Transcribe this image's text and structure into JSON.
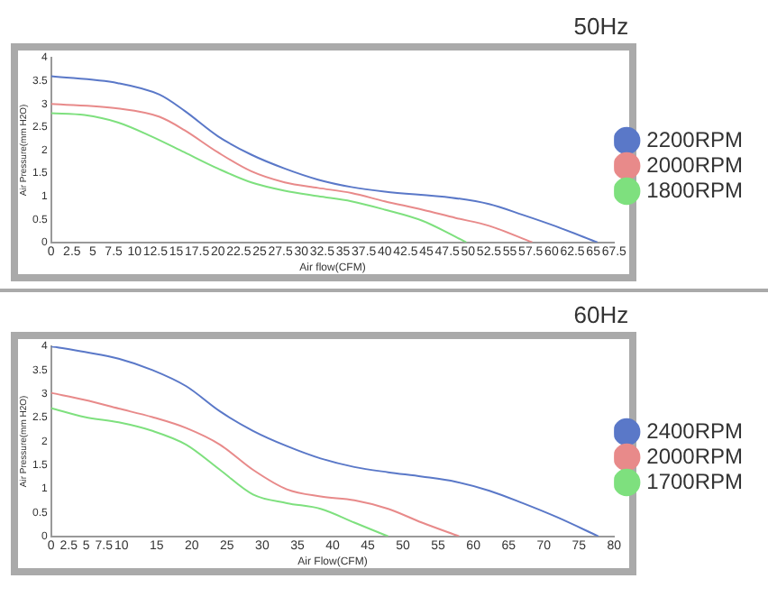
{
  "chart_data": [
    {
      "type": "line",
      "title": "50Hz",
      "xlabel": "Air flow(CFM)",
      "ylabel": "Air Pressure(mm H2O)",
      "xlim": [
        0,
        67.5
      ],
      "xticks": [
        0,
        2.5,
        5,
        7.5,
        10,
        12.5,
        15,
        17.5,
        20,
        22.5,
        25,
        27.5,
        30,
        32.5,
        35,
        37.5,
        40,
        42.5,
        45,
        47.5,
        50,
        52.5,
        55,
        57.5,
        60,
        62.5,
        65,
        67.5
      ],
      "ylim": [
        0,
        4
      ],
      "yticks": [
        0,
        0.5,
        1,
        1.5,
        2,
        2.5,
        3,
        3.5,
        4
      ],
      "grid": false,
      "legend": "right",
      "marker": "none",
      "line_style": "solid",
      "series": [
        {
          "name": "2200RPM",
          "color": "#5a78c8",
          "x": [
            0,
            8,
            13,
            16,
            20,
            24,
            28,
            32,
            36,
            40,
            48,
            52.5,
            56.5,
            60.5,
            65.5
          ],
          "values": [
            3.6,
            3.45,
            3.2,
            2.85,
            2.3,
            1.9,
            1.6,
            1.36,
            1.2,
            1.1,
            0.97,
            0.83,
            0.6,
            0.35,
            0
          ]
        },
        {
          "name": "2000RPM",
          "color": "#e88a8a",
          "x": [
            0,
            8,
            13,
            16,
            20,
            24,
            28,
            32,
            36,
            40,
            44.5,
            48.5,
            52.5,
            57.7
          ],
          "values": [
            3.0,
            2.9,
            2.72,
            2.43,
            1.95,
            1.54,
            1.3,
            1.18,
            1.07,
            0.89,
            0.71,
            0.53,
            0.36,
            0
          ]
        },
        {
          "name": "1800RPM",
          "color": "#7ee07e",
          "x": [
            0,
            4,
            8,
            12,
            16,
            20,
            24,
            28,
            32,
            36,
            40,
            44.5,
            49.8
          ],
          "values": [
            2.8,
            2.76,
            2.6,
            2.3,
            1.95,
            1.6,
            1.3,
            1.12,
            1.0,
            0.89,
            0.71,
            0.47,
            0
          ]
        }
      ]
    },
    {
      "type": "line",
      "title": "60Hz",
      "xlabel": "Air Flow(CFM)",
      "ylabel": "Air Pressure(mm H2O)",
      "xlim": [
        0,
        80
      ],
      "xticks": [
        0,
        2.5,
        5,
        7.5,
        10,
        15,
        20,
        25,
        30,
        35,
        40,
        45,
        50,
        55,
        60,
        65,
        70,
        75,
        80
      ],
      "ylim": [
        0,
        4
      ],
      "yticks": [
        0,
        0.5,
        1,
        1.5,
        2,
        2.5,
        3,
        3.5,
        4
      ],
      "grid": false,
      "legend": "right",
      "marker": "none",
      "line_style": "solid",
      "series": [
        {
          "name": "2400RPM",
          "color": "#5a78c8",
          "x": [
            0,
            4.8,
            9.6,
            14.4,
            19.2,
            24,
            28.7,
            33.5,
            38.3,
            43.1,
            47.9,
            52.7,
            57.5,
            62.3,
            67,
            71.8,
            77.8
          ],
          "values": [
            4.0,
            3.88,
            3.74,
            3.5,
            3.16,
            2.63,
            2.22,
            1.9,
            1.64,
            1.46,
            1.35,
            1.26,
            1.15,
            0.96,
            0.7,
            0.41,
            0
          ]
        },
        {
          "name": "2000RPM",
          "color": "#e88a8a",
          "x": [
            0,
            4.8,
            9.6,
            14.4,
            19.2,
            24,
            28.7,
            33.5,
            38.3,
            43.1,
            47.9,
            52.7,
            58
          ],
          "values": [
            3.02,
            2.87,
            2.69,
            2.51,
            2.28,
            1.93,
            1.4,
            0.99,
            0.84,
            0.76,
            0.58,
            0.29,
            0
          ]
        },
        {
          "name": "1700RPM",
          "color": "#7ee07e",
          "x": [
            0,
            4.8,
            9.6,
            14.4,
            19.2,
            24,
            28.7,
            33.5,
            38.3,
            43.1,
            47.9
          ],
          "values": [
            2.7,
            2.51,
            2.4,
            2.22,
            1.93,
            1.4,
            0.88,
            0.7,
            0.58,
            0.29,
            0
          ]
        }
      ]
    }
  ]
}
